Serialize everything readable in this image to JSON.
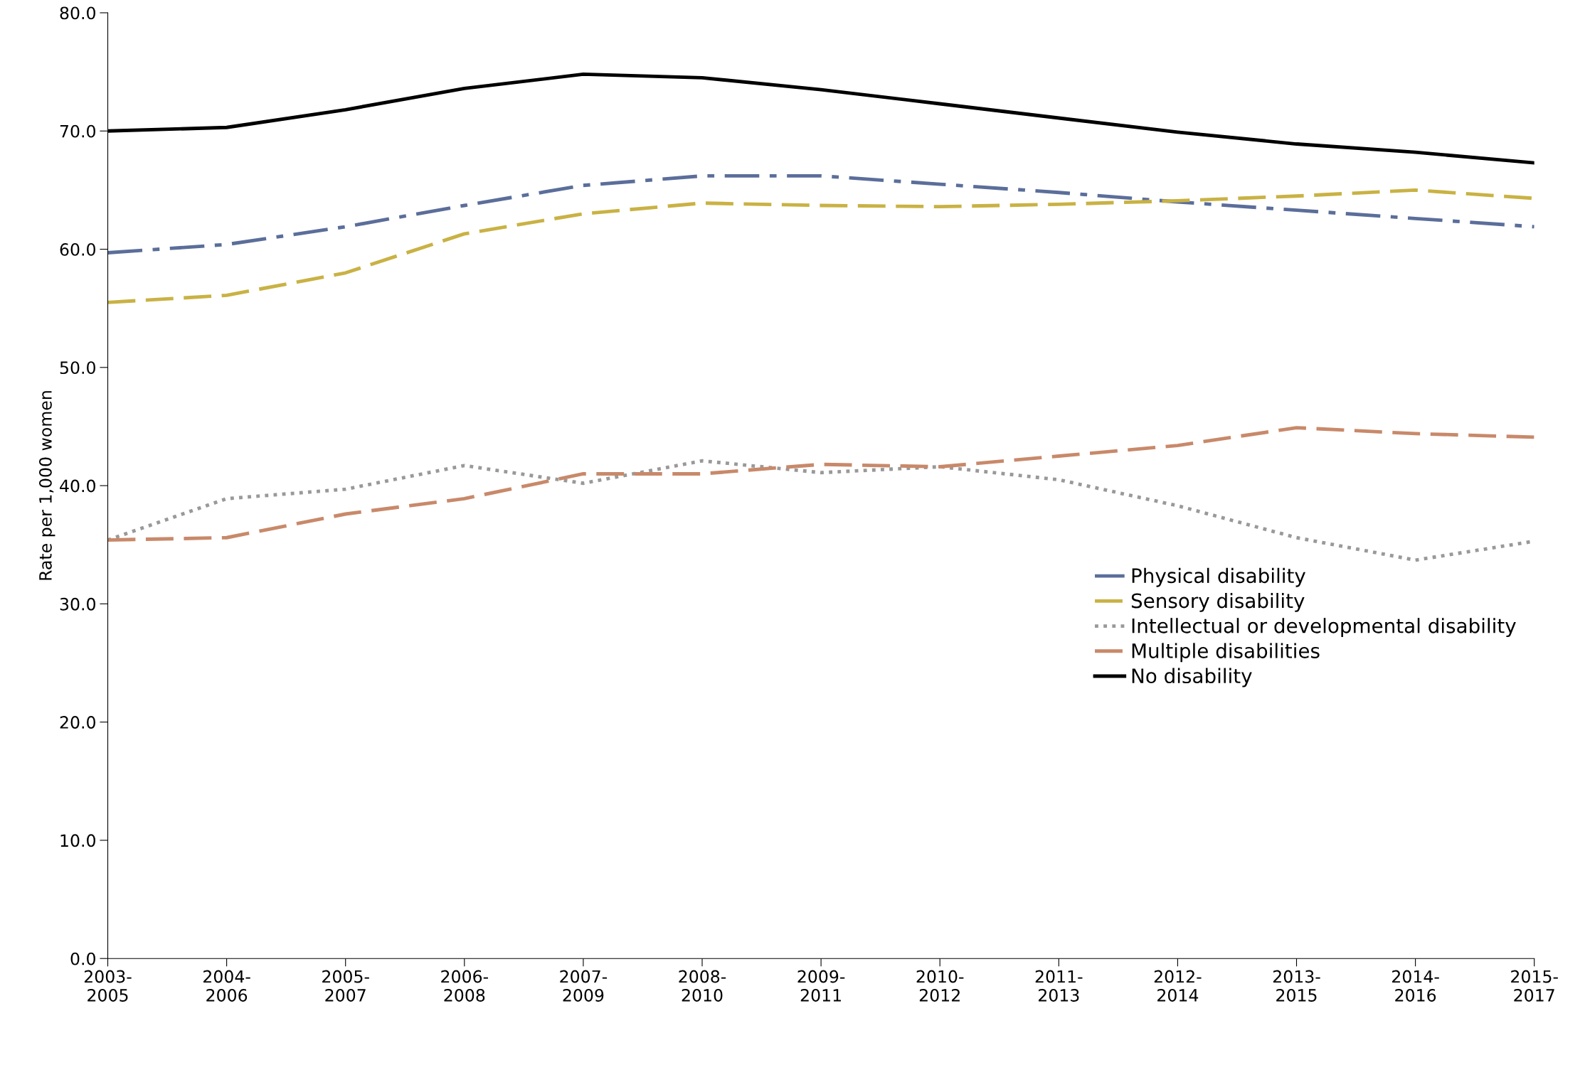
{
  "chart_data": {
    "type": "line",
    "ylabel": "Rate per 1,000 women",
    "categories": [
      "2003-\n2005",
      "2004-\n2006",
      "2005-\n2007",
      "2006-\n2008",
      "2007-\n2009",
      "2008-\n2010",
      "2009-\n2011",
      "2010-\n2012",
      "2011-\n2013",
      "2012-\n2014",
      "2013-\n2015",
      "2014-\n2016",
      "2015-\n2017"
    ],
    "ylim": [
      0,
      80
    ],
    "yticks": [
      {
        "value": 0,
        "label": "0.0"
      },
      {
        "value": 10,
        "label": "10.0"
      },
      {
        "value": 20,
        "label": "20.0"
      },
      {
        "value": 30,
        "label": "30.0"
      },
      {
        "value": 40,
        "label": "40.0"
      },
      {
        "value": 50,
        "label": "50.0"
      },
      {
        "value": 60,
        "label": "60.0"
      },
      {
        "value": 70,
        "label": "70.0"
      },
      {
        "value": 80,
        "label": "80.0"
      }
    ],
    "grid": false,
    "legend": "right",
    "series": [
      {
        "name": "Physical disability",
        "color": "#5b6e9a",
        "line_style": "dashdot",
        "values": [
          59.7,
          60.4,
          61.9,
          63.7,
          65.4,
          66.2,
          66.2,
          65.5,
          64.8,
          64.0,
          63.3,
          62.6,
          61.9
        ]
      },
      {
        "name": "Sensory disability",
        "color": "#c9b244",
        "line_style": "dashed",
        "values": [
          55.5,
          56.1,
          58.0,
          61.3,
          63.0,
          63.9,
          63.7,
          63.6,
          63.8,
          64.1,
          64.5,
          65.0,
          64.3
        ]
      },
      {
        "name": "Intellectual or developmental disability",
        "color": "#999999",
        "line_style": "dotted",
        "values": [
          35.4,
          38.9,
          39.7,
          41.7,
          40.2,
          42.1,
          41.1,
          41.6,
          40.5,
          38.3,
          35.6,
          33.7,
          35.3
        ]
      },
      {
        "name": "Multiple disabilities",
        "color": "#c8896a",
        "line_style": "dashed",
        "values": [
          35.4,
          35.6,
          37.6,
          38.9,
          41.0,
          41.0,
          41.8,
          41.6,
          42.5,
          43.4,
          44.9,
          44.4,
          44.1
        ]
      },
      {
        "name": "No disability",
        "color": "#000000",
        "line_style": "solid",
        "values": [
          70.0,
          70.3,
          71.8,
          73.6,
          74.8,
          74.5,
          73.5,
          72.3,
          71.1,
          69.9,
          68.9,
          68.2,
          67.3
        ]
      }
    ]
  }
}
